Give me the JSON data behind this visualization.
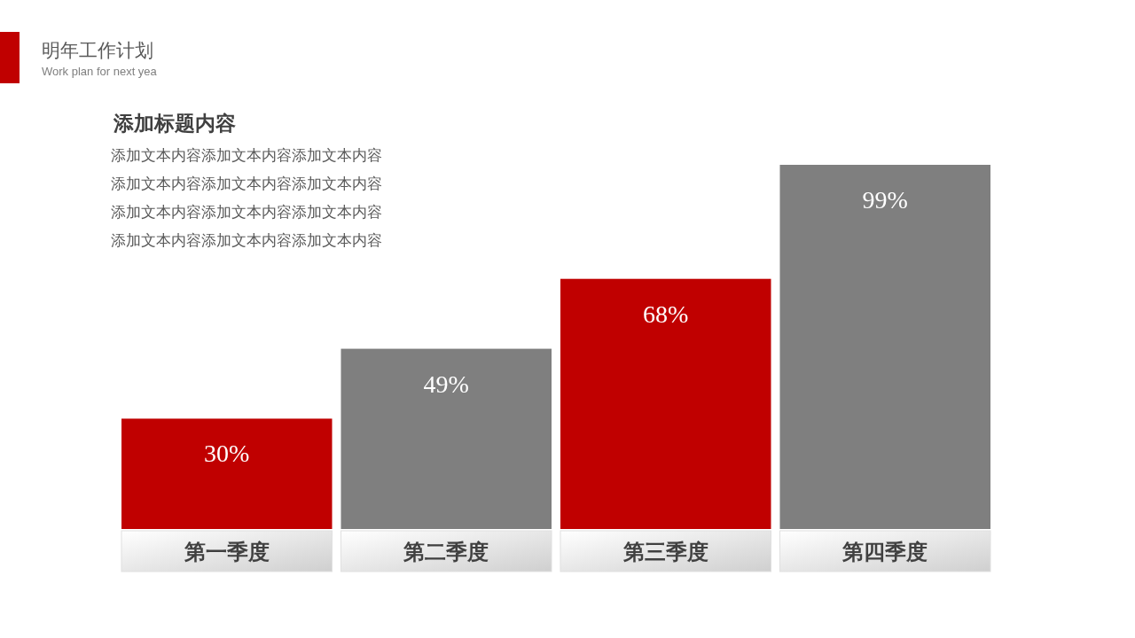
{
  "chart_data": {
    "type": "bar",
    "title": "明年工作计划",
    "subtitle": "Work plan for next yea",
    "annotations": [
      "添加标题内容",
      "添加文本内容添加文本内容添加文本内容",
      "添加文本内容添加文本内容添加文本内容",
      "添加文本内容添加文本内容添加文本内容",
      "添加文本内容添加文本内容添加文本内容"
    ],
    "categories": [
      "第一季度",
      "第二季度",
      "第三季度",
      "第四季度"
    ],
    "values": [
      30,
      49,
      68,
      99
    ],
    "colors": [
      "#c00000",
      "#7f7f7f",
      "#c00000",
      "#7f7f7f"
    ],
    "value_labels": [
      "30%",
      "49%",
      "68%",
      "99%"
    ]
  }
}
